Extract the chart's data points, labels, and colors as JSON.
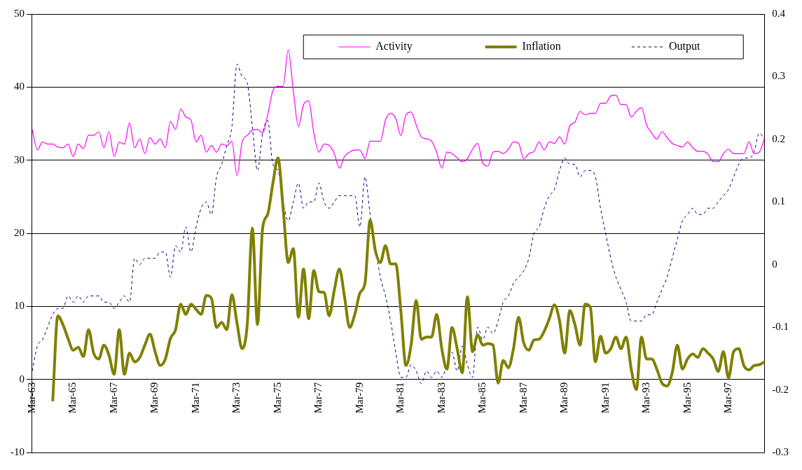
{
  "chart_data": {
    "type": "line",
    "categories": [
      "Mar-63",
      null,
      null,
      null,
      null,
      null,
      null,
      null,
      "Mar-65",
      null,
      null,
      null,
      null,
      null,
      null,
      null,
      "Mar-67",
      null,
      null,
      null,
      null,
      null,
      null,
      null,
      "Mar-69",
      null,
      null,
      null,
      null,
      null,
      null,
      null,
      "Mar-71",
      null,
      null,
      null,
      null,
      null,
      null,
      null,
      "Mar-73",
      null,
      null,
      null,
      null,
      null,
      null,
      null,
      "Mar-75",
      null,
      null,
      null,
      null,
      null,
      null,
      null,
      "Mar-77",
      null,
      null,
      null,
      null,
      null,
      null,
      null,
      "Mar-79",
      null,
      null,
      null,
      null,
      null,
      null,
      null,
      "Mar-81",
      null,
      null,
      null,
      null,
      null,
      null,
      null,
      "Mar-83",
      null,
      null,
      null,
      null,
      null,
      null,
      null,
      "Mar-85",
      null,
      null,
      null,
      null,
      null,
      null,
      null,
      "Mar-87",
      null,
      null,
      null,
      null,
      null,
      null,
      null,
      "Mar-89",
      null,
      null,
      null,
      null,
      null,
      null,
      null,
      "Mar-91",
      null,
      null,
      null,
      null,
      null,
      null,
      null,
      "Mar-93",
      null,
      null,
      null,
      null,
      null,
      null,
      null,
      "Mar-95",
      null,
      null,
      null,
      null,
      null,
      null,
      null,
      "Mar-97",
      null,
      null,
      null,
      null,
      null,
      null,
      null
    ],
    "series": [
      {
        "name": "Activity",
        "color": "#ff00ff",
        "line_style": "solid",
        "values": [
          34.2,
          31.4,
          32.5,
          32.2,
          32.2,
          31.8,
          31.7,
          32.2,
          30.5,
          32.2,
          31.6,
          33.4,
          33.4,
          33.9,
          31.7,
          33.9,
          30.5,
          32.5,
          32.2,
          35.1,
          31.7,
          32.9,
          30.9,
          33.1,
          32.2,
          32.9,
          31.7,
          35.3,
          34.2,
          37.0,
          35.9,
          35.5,
          32.5,
          33.4,
          31.1,
          32.0,
          31.1,
          32.2,
          32.0,
          32.6,
          27.9,
          32.5,
          33.4,
          34.1,
          34.2,
          33.7,
          36.2,
          39.5,
          40.1,
          40.1,
          45.1,
          39.5,
          34.6,
          37.6,
          38.1,
          33.7,
          31.1,
          32.2,
          32.0,
          30.9,
          28.9,
          30.5,
          31.1,
          31.4,
          31.4,
          30.2,
          32.6,
          32.6,
          32.6,
          35.5,
          36.4,
          35.7,
          33.4,
          36.2,
          36.6,
          34.8,
          33.2,
          32.9,
          32.6,
          31.1,
          28.9,
          31.1,
          30.9,
          30.3,
          29.8,
          30.2,
          31.5,
          32.3,
          29.6,
          29.2,
          31.1,
          31.2,
          30.9,
          31.5,
          32.5,
          32.3,
          30.2,
          30.9,
          31.2,
          32.5,
          31.4,
          32.5,
          32.3,
          33.2,
          32.2,
          34.7,
          35.2,
          36.7,
          36.2,
          36.4,
          36.4,
          37.8,
          37.8,
          38.8,
          38.9,
          37.6,
          37.6,
          35.9,
          36.7,
          37.2,
          34.8,
          33.7,
          32.9,
          33.9,
          33.1,
          32.3,
          32.0,
          31.8,
          32.5,
          31.7,
          31.2,
          31.2,
          30.8,
          29.8,
          29.8,
          30.9,
          31.5,
          30.9,
          30.9,
          30.9,
          32.5,
          30.9,
          31.1,
          32.9
        ]
      },
      {
        "name": "Inflation",
        "color": "#808000",
        "line_style": "solid",
        "values": [
          null,
          null,
          null,
          null,
          -3.0,
          8.7,
          7.5,
          5.6,
          4.0,
          4.4,
          3.1,
          6.8,
          3.6,
          2.8,
          4.7,
          3.3,
          0.7,
          6.8,
          0.7,
          3.6,
          2.4,
          3.0,
          4.7,
          6.2,
          3.8,
          1.9,
          2.8,
          5.6,
          6.8,
          10.3,
          8.9,
          10.3,
          9.6,
          8.9,
          11.5,
          11.1,
          7.1,
          7.8,
          6.8,
          11.6,
          7.7,
          4.2,
          7.5,
          20.7,
          7.5,
          20.7,
          22.6,
          26.8,
          30.3,
          23.5,
          16.0,
          17.9,
          8.5,
          15.1,
          8.3,
          14.9,
          12.0,
          11.9,
          8.7,
          12.2,
          15.1,
          11.3,
          7.1,
          8.9,
          11.8,
          13.2,
          21.8,
          17.7,
          16.0,
          18.3,
          15.8,
          15.8,
          9.4,
          1.9,
          4.7,
          10.8,
          5.5,
          5.8,
          5.8,
          8.9,
          4.2,
          1.4,
          7.1,
          4.2,
          0.9,
          11.3,
          3.8,
          6.1,
          4.7,
          4.9,
          4.7,
          -0.5,
          2.6,
          1.6,
          4.2,
          8.5,
          5.0,
          4.0,
          5.4,
          5.5,
          6.6,
          8.3,
          10.2,
          8.0,
          3.6,
          9.4,
          7.5,
          4.7,
          10.3,
          9.9,
          2.4,
          5.9,
          3.6,
          4.2,
          5.8,
          4.2,
          5.8,
          1.4,
          -1.4,
          5.8,
          2.8,
          2.8,
          1.4,
          -0.5,
          -0.9,
          0.9,
          4.7,
          1.4,
          2.8,
          3.5,
          3.0,
          4.2,
          3.6,
          2.8,
          1.1,
          3.8,
          0.2,
          3.8,
          4.2,
          1.9,
          1.3,
          1.9,
          2.0,
          2.4
        ]
      },
      {
        "name": "Output",
        "color": "#000080",
        "line_style": "dashed",
        "axis": "y2",
        "values": [
          -0.17,
          -0.13,
          -0.12,
          -0.1,
          -0.08,
          -0.07,
          -0.07,
          -0.05,
          -0.06,
          -0.05,
          -0.06,
          -0.05,
          -0.05,
          -0.05,
          -0.06,
          -0.06,
          -0.07,
          -0.06,
          -0.05,
          -0.06,
          0.01,
          0.0,
          0.01,
          0.01,
          0.01,
          0.02,
          0.02,
          -0.02,
          0.03,
          0.02,
          0.06,
          0.02,
          0.06,
          0.09,
          0.1,
          0.08,
          0.14,
          0.16,
          0.19,
          0.22,
          0.32,
          0.3,
          0.29,
          0.22,
          0.15,
          0.21,
          0.23,
          0.16,
          0.15,
          0.1,
          0.07,
          0.1,
          0.13,
          0.09,
          0.1,
          0.1,
          0.13,
          0.1,
          0.09,
          0.1,
          0.11,
          0.11,
          0.11,
          0.11,
          0.06,
          0.14,
          0.08,
          0.03,
          -0.02,
          -0.05,
          -0.09,
          -0.14,
          -0.18,
          -0.18,
          -0.16,
          -0.17,
          -0.19,
          -0.17,
          -0.18,
          -0.17,
          -0.18,
          -0.16,
          -0.14,
          -0.17,
          -0.13,
          -0.16,
          -0.18,
          -0.1,
          -0.12,
          -0.1,
          -0.11,
          -0.09,
          -0.06,
          -0.05,
          -0.03,
          -0.02,
          -0.01,
          0.01,
          0.05,
          0.06,
          0.09,
          0.11,
          0.12,
          0.15,
          0.17,
          0.16,
          0.16,
          0.14,
          0.15,
          0.15,
          0.14,
          0.09,
          0.05,
          0.01,
          -0.02,
          -0.04,
          -0.06,
          -0.09,
          -0.09,
          -0.09,
          -0.08,
          -0.08,
          -0.06,
          -0.04,
          -0.02,
          0.01,
          0.04,
          0.07,
          0.08,
          0.09,
          0.08,
          0.08,
          0.09,
          0.09,
          0.1,
          0.11,
          0.12,
          0.14,
          0.16,
          0.17,
          0.17,
          0.18,
          0.21,
          0.2
        ]
      }
    ],
    "ylim": [
      -10,
      50
    ],
    "yticks": [
      -10,
      0,
      10,
      20,
      30,
      40,
      50
    ],
    "y2lim": [
      -0.3,
      0.4
    ],
    "y2ticks": [
      -0.3,
      -0.2,
      -0.1,
      0,
      0.1,
      0.2,
      0.3,
      0.4
    ],
    "grid": "y",
    "legend": "top right",
    "marker": "none"
  }
}
